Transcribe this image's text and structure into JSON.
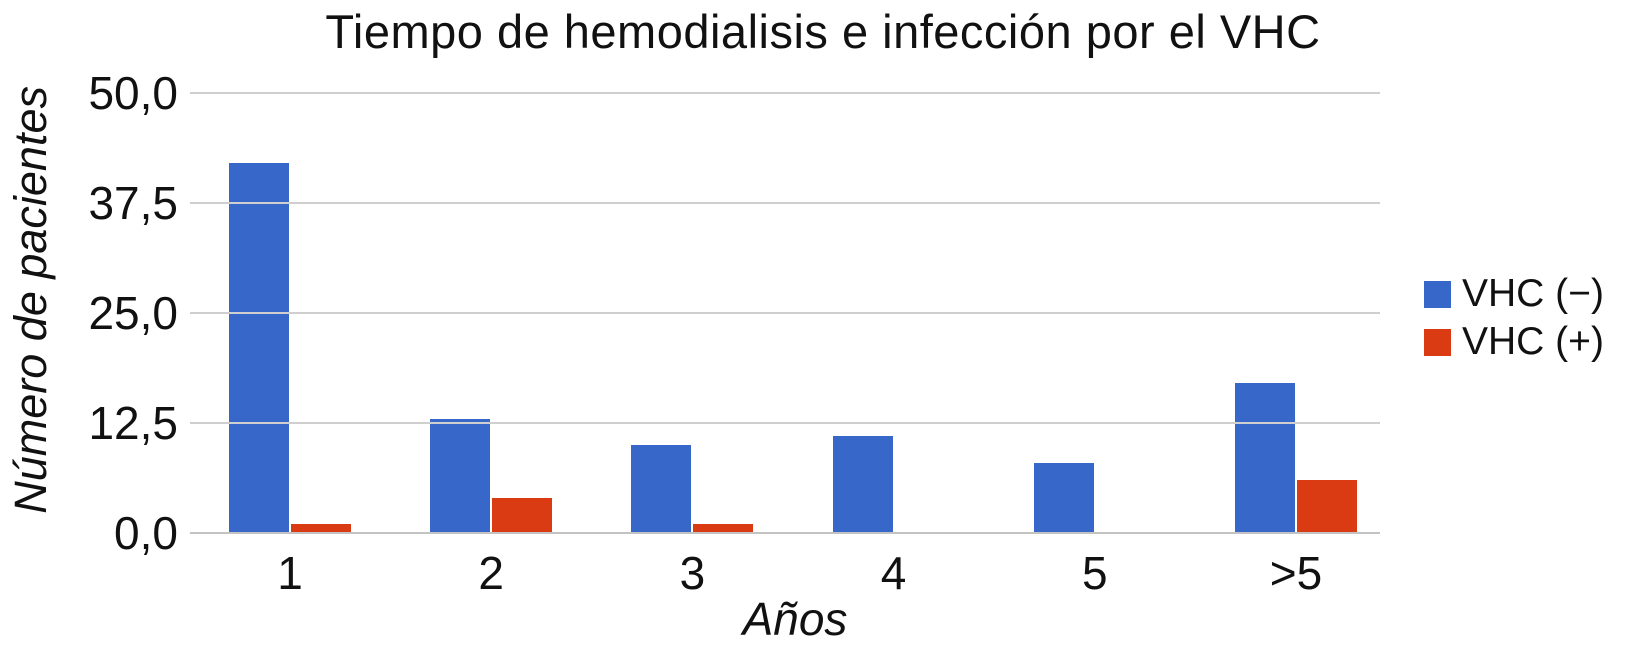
{
  "chart_data": {
    "type": "bar",
    "title": "Tiempo de hemodialisis e infección por el VHC",
    "xlabel": "Años",
    "ylabel": "Número de pacientes",
    "categories": [
      "1",
      "2",
      "3",
      "4",
      "5",
      ">5"
    ],
    "series": [
      {
        "name": "VHC (−)",
        "color": "#3667C9",
        "values": [
          42,
          13,
          10,
          11,
          8,
          17
        ]
      },
      {
        "name": "VHC (+)",
        "color": "#DB3B13",
        "values": [
          1,
          4,
          1,
          0,
          0,
          6
        ]
      }
    ],
    "ylim": [
      0,
      50
    ],
    "yticks": [
      {
        "label": "0,0",
        "value": 0
      },
      {
        "label": "12,5",
        "value": 12.5
      },
      {
        "label": "25,0",
        "value": 25
      },
      {
        "label": "37,5",
        "value": 37.5
      },
      {
        "label": "50,0",
        "value": 50
      }
    ],
    "grid": true,
    "legend_position": "right",
    "colors": {
      "gridline": "#cfcfcf",
      "text": "#111111",
      "background": "#ffffff"
    }
  }
}
